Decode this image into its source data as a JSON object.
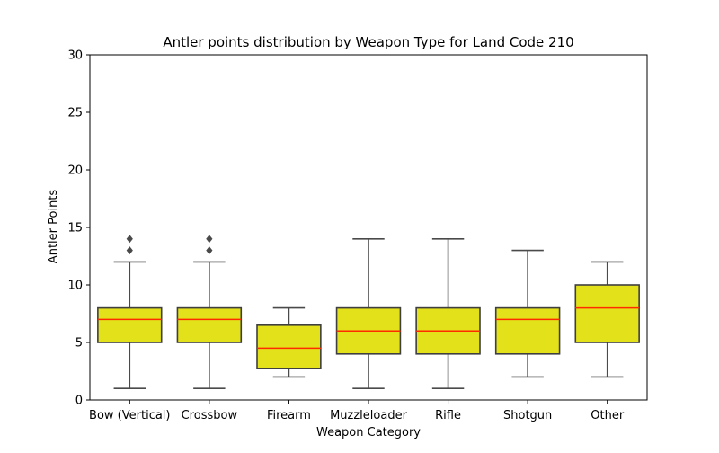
{
  "chart_data": {
    "type": "box",
    "title": "Antler points distribution by Weapon Type for Land Code 210",
    "xlabel": "Weapon Category",
    "ylabel": "Antler Points",
    "ylim": [
      0,
      30
    ],
    "yticks": [
      0,
      5,
      10,
      15,
      20,
      25,
      30
    ],
    "grid": false,
    "colors": {
      "box_fill": "#e3e11a",
      "box_edge": "#3f3f3f",
      "median": "#ff2a00",
      "whisker": "#4a4a4a",
      "outlier": "#4a4a4a"
    },
    "categories": [
      "Bow (Vertical)",
      "Crossbow",
      "Firearm",
      "Muzzleloader",
      "Rifle",
      "Shotgun",
      "Other"
    ],
    "boxes": [
      {
        "category": "Bow (Vertical)",
        "whisker_low": 1,
        "q1": 5,
        "median": 7,
        "q3": 8,
        "whisker_high": 12,
        "outliers": [
          13,
          14
        ]
      },
      {
        "category": "Crossbow",
        "whisker_low": 1,
        "q1": 5,
        "median": 7,
        "q3": 8,
        "whisker_high": 12,
        "outliers": [
          13,
          14
        ]
      },
      {
        "category": "Firearm",
        "whisker_low": 2,
        "q1": 2.75,
        "median": 4.5,
        "q3": 6.5,
        "whisker_high": 8,
        "outliers": []
      },
      {
        "category": "Muzzleloader",
        "whisker_low": 1,
        "q1": 4,
        "median": 6,
        "q3": 8,
        "whisker_high": 14,
        "outliers": []
      },
      {
        "category": "Rifle",
        "whisker_low": 1,
        "q1": 4,
        "median": 6,
        "q3": 8,
        "whisker_high": 14,
        "outliers": []
      },
      {
        "category": "Shotgun",
        "whisker_low": 2,
        "q1": 4,
        "median": 7,
        "q3": 8,
        "whisker_high": 13,
        "outliers": []
      },
      {
        "category": "Other",
        "whisker_low": 2,
        "q1": 5,
        "median": 8,
        "q3": 10,
        "whisker_high": 12,
        "outliers": []
      }
    ]
  }
}
